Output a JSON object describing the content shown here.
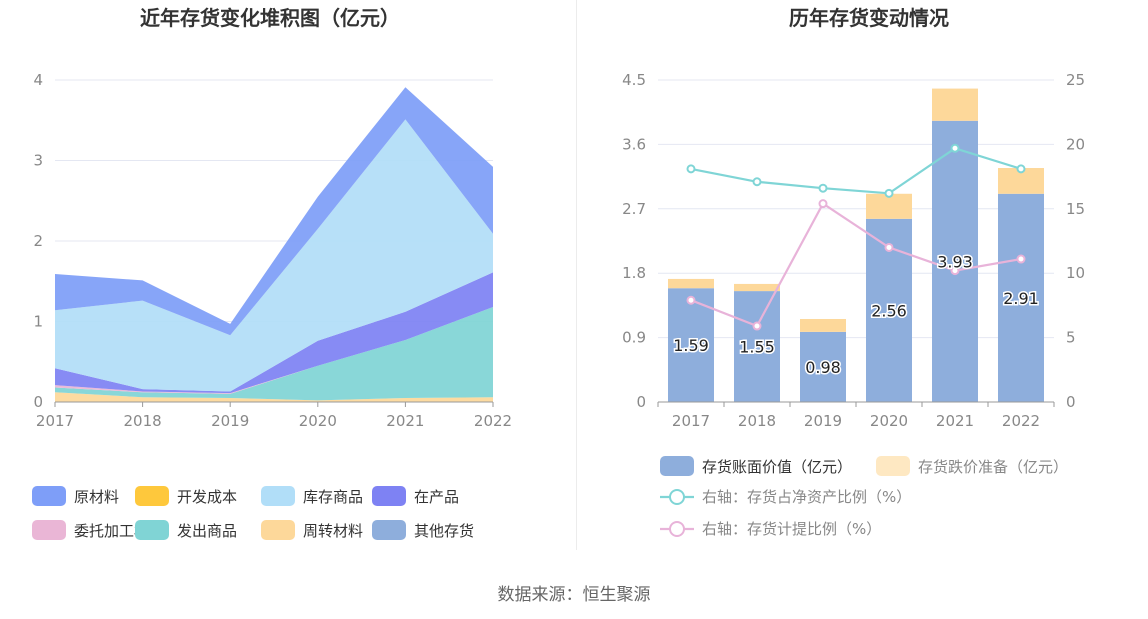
{
  "source_text": "数据来源：恒生聚源",
  "chart_data": [
    {
      "type": "area",
      "stacked": true,
      "title": "近年存货变化堆积图（亿元）",
      "x": [
        "2017",
        "2018",
        "2019",
        "2020",
        "2021",
        "2022"
      ],
      "yticks": [
        "0",
        "1",
        "2",
        "3",
        "4"
      ],
      "ylim": [
        0,
        4
      ],
      "grid": true,
      "legend_position": "bottom",
      "legend_order": [
        "原材料",
        "开发成本",
        "库存商品",
        "在产品",
        "委托加工材料",
        "发出商品",
        "周转材料",
        "其他存货"
      ],
      "series": [
        {
          "name": "周转材料",
          "color": "#fdd89a",
          "values": [
            0.12,
            0.06,
            0.05,
            0.02,
            0.05,
            0.06
          ]
        },
        {
          "name": "开发成本",
          "color": "#fec83c",
          "values": [
            0.0,
            0.0,
            0.0,
            0.0,
            0.0,
            0.0
          ]
        },
        {
          "name": "其他存货",
          "color": "#8eaedc",
          "values": [
            0.0,
            0.0,
            0.0,
            0.0,
            0.0,
            0.0
          ]
        },
        {
          "name": "发出商品",
          "color": "#80d4d5",
          "values": [
            0.06,
            0.06,
            0.05,
            0.43,
            0.72,
            1.12
          ]
        },
        {
          "name": "委托加工材料",
          "color": "#eab6d6",
          "values": [
            0.03,
            0.01,
            0.01,
            0.0,
            0.0,
            0.0
          ]
        },
        {
          "name": "在产品",
          "color": "#7e82f3",
          "values": [
            0.21,
            0.03,
            0.02,
            0.31,
            0.35,
            0.43
          ]
        },
        {
          "name": "库存商品",
          "color": "#b1def8",
          "values": [
            0.72,
            1.1,
            0.7,
            1.39,
            2.39,
            0.48
          ]
        },
        {
          "name": "原材料",
          "color": "#7e9ef8",
          "values": [
            0.45,
            0.25,
            0.14,
            0.4,
            0.4,
            0.83
          ]
        }
      ]
    },
    {
      "type": "bar+line",
      "title": "历年存货变动情况",
      "categories": [
        "2017",
        "2018",
        "2019",
        "2020",
        "2021",
        "2022"
      ],
      "left_yticks": [
        "0",
        "0.9",
        "1.8",
        "2.7",
        "3.6",
        "4.5"
      ],
      "left_ylim": [
        0,
        4.5
      ],
      "right_yticks": [
        "0",
        "5",
        "10",
        "15",
        "20",
        "25"
      ],
      "right_ylim": [
        0,
        25
      ],
      "grid": true,
      "legend_position": "bottom",
      "bars": [
        {
          "name": "存货账面价值（亿元）",
          "color": "#8eaedc",
          "values": [
            1.59,
            1.55,
            0.98,
            2.56,
            3.93,
            2.91
          ],
          "labels": [
            "1.59",
            "1.55",
            "0.98",
            "2.56",
            "3.93",
            "2.91"
          ]
        },
        {
          "name": "存货跌价准备（亿元）",
          "color": "#fdd89a",
          "values": [
            0.13,
            0.1,
            0.18,
            0.35,
            0.45,
            0.36
          ]
        }
      ],
      "lines": [
        {
          "name": "右轴：存货占净资产比例（%）",
          "color": "#7fd5d6",
          "values": [
            18.1,
            17.1,
            16.6,
            16.2,
            19.7,
            18.1
          ]
        },
        {
          "name": "右轴：存货计提比例（%）",
          "color": "#e8b3d9",
          "values": [
            7.9,
            5.9,
            15.4,
            12.0,
            10.2,
            11.1
          ]
        }
      ]
    }
  ]
}
